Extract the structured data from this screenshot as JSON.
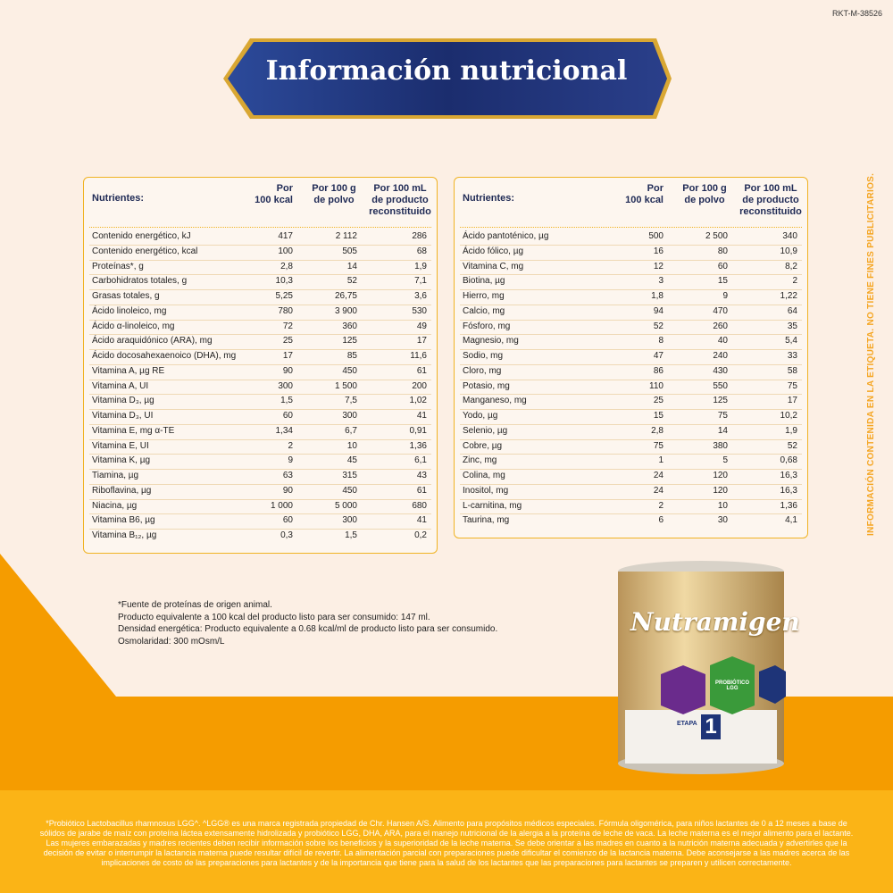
{
  "code": "RKT-M-38526",
  "title": "Información nutricional",
  "side_note": "INFORMACIÓN CONTENIDA EN LA ETIQUETA. NO TIENE FINES PUBLICITARIOS.",
  "tables": [
    {
      "header": [
        "Nutrientes:",
        "Por\n100 kcal",
        "Por 100 g\nde polvo",
        "Por 100 mL\nde producto\nreconstituido"
      ],
      "rows": [
        [
          "Contenido energético, kJ",
          "417",
          "2 112",
          "286"
        ],
        [
          "Contenido energético, kcal",
          "100",
          "505",
          "68"
        ],
        [
          "Proteínas*, g",
          "2,8",
          "14",
          "1,9"
        ],
        [
          "Carbohidratos totales, g",
          "10,3",
          "52",
          "7,1"
        ],
        [
          "Grasas totales, g",
          "5,25",
          "26,75",
          "3,6"
        ],
        [
          "Ácido linoleico, mg",
          "780",
          "3 900",
          "530"
        ],
        [
          "Ácido α-linoleico, mg",
          "72",
          "360",
          "49"
        ],
        [
          "Ácido araquidónico (ARA), mg",
          "25",
          "125",
          "17"
        ],
        [
          "Ácido docosahexaenoico (DHA), mg",
          "17",
          "85",
          "11,6"
        ],
        [
          "Vitamina A, µg RE",
          "90",
          "450",
          "61"
        ],
        [
          "Vitamina A, UI",
          "300",
          "1 500",
          "200"
        ],
        [
          "Vitamina D₃, µg",
          "1,5",
          "7,5",
          "1,02"
        ],
        [
          "Vitamina D₃, UI",
          "60",
          "300",
          "41"
        ],
        [
          "Vitamina E, mg α-TE",
          "1,34",
          "6,7",
          "0,91"
        ],
        [
          "Vitamina E, UI",
          "2",
          "10",
          "1,36"
        ],
        [
          "Vitamina K, µg",
          "9",
          "45",
          "6,1"
        ],
        [
          "Tiamina, µg",
          "63",
          "315",
          "43"
        ],
        [
          "Riboflavina, µg",
          "90",
          "450",
          "61"
        ],
        [
          "Niacina, µg",
          "1 000",
          "5 000",
          "680"
        ],
        [
          "Vitamina B6, µg",
          "60",
          "300",
          "41"
        ],
        [
          "Vitamina B₁₂, µg",
          "0,3",
          "1,5",
          "0,2"
        ]
      ]
    },
    {
      "header": [
        "Nutrientes:",
        "Por\n100 kcal",
        "Por 100 g\nde polvo",
        "Por 100 mL\nde producto\nreconstituido"
      ],
      "rows": [
        [
          "Ácido pantoténico, µg",
          "500",
          "2 500",
          "340"
        ],
        [
          "Ácido fólico, µg",
          "16",
          "80",
          "10,9"
        ],
        [
          "Vitamina C, mg",
          "12",
          "60",
          "8,2"
        ],
        [
          "Biotina, µg",
          "3",
          "15",
          "2"
        ],
        [
          "Hierro, mg",
          "1,8",
          "9",
          "1,22"
        ],
        [
          "Calcio, mg",
          "94",
          "470",
          "64"
        ],
        [
          "Fósforo, mg",
          "52",
          "260",
          "35"
        ],
        [
          "Magnesio, mg",
          "8",
          "40",
          "5,4"
        ],
        [
          "Sodio, mg",
          "47",
          "240",
          "33"
        ],
        [
          "Cloro, mg",
          "86",
          "430",
          "58"
        ],
        [
          "Potasio, mg",
          "110",
          "550",
          "75"
        ],
        [
          "Manganeso, mg",
          "25",
          "125",
          "17"
        ],
        [
          "Yodo, µg",
          "15",
          "75",
          "10,2"
        ],
        [
          "Selenio, µg",
          "2,8",
          "14",
          "1,9"
        ],
        [
          "Cobre, µg",
          "75",
          "380",
          "52"
        ],
        [
          "Zinc, mg",
          "1",
          "5",
          "0,68"
        ],
        [
          "Colina, mg",
          "24",
          "120",
          "16,3"
        ],
        [
          "Inositol, mg",
          "24",
          "120",
          "16,3"
        ],
        [
          "L-carnitina, mg",
          "2",
          "10",
          "1,36"
        ],
        [
          "Taurina, mg",
          "6",
          "30",
          "4,1"
        ]
      ]
    }
  ],
  "notes": [
    "*Fuente de proteínas de origen animal.",
    "Producto equivalente a 100 kcal del producto listo para ser consumido: 147 ml.",
    "Densidad energética: Producto equivalente a 0.68 kcal/ml de producto listo para ser consumido.",
    "Osmolaridad: 300 mOsm/L"
  ],
  "product": {
    "brand": "Nutramigen",
    "badge": "PROBIÓTICO LGG",
    "stage_label": "ETAPA",
    "stage": "1"
  },
  "footer": "*Probiótico Lactobacillus rhamnosus LGG^. ^LGG® es una marca registrada propiedad de Chr. Hansen A/S. Alimento para propósitos médicos especiales. Fórmula oligomérica, para niños lactantes de 0 a 12 meses a base de sólidos de jarabe de maíz con proteína láctea extensamente hidrolizada y probiótico LGG, DHA, ARA, para el manejo nutricional de la alergia a la proteína de leche de vaca. La leche materna es el mejor alimento para el lactante. Las mujeres embarazadas y madres recientes deben recibir información sobre los beneficios y la superioridad de la leche materna. Se debe orientar a las madres en cuanto a la nutrición materna adecuada y advertirles que la decisión de evitar o interrumpir la lactancia materna puede resultar difícil de revertir. La alimentación parcial con preparaciones puede dificultar el comienzo de la lactancia materna. Debe aconsejarse a las madres acerca de las implicaciones de costo de las preparaciones para lactantes y de la importancia que tiene para la salud de los lactantes que las preparaciones para lactantes se preparen y utilicen correctamente."
}
